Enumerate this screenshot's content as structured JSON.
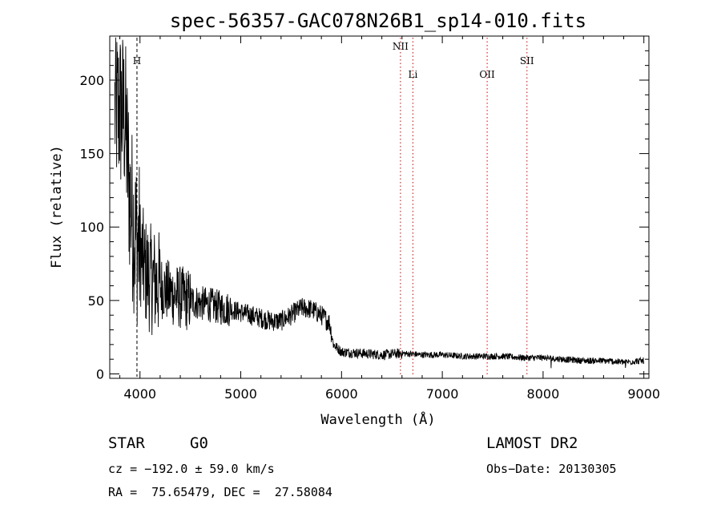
{
  "chart_data": {
    "type": "line",
    "title": "spec-56357-GAC078N26B1_sp14-010.fits",
    "xlabel": "Wavelength (Å)",
    "ylabel": "Flux (relative)",
    "xlim": [
      3700,
      9050
    ],
    "ylim": [
      -3,
      230
    ],
    "xticks": [
      4000,
      5000,
      6000,
      7000,
      8000,
      9000
    ],
    "yticks": [
      0,
      50,
      100,
      150,
      200
    ],
    "grid": false,
    "series_color": "#000000",
    "line_marker_color": "#d00000",
    "spectrum_envelope": {
      "x": [
        3800,
        3850,
        3900,
        3950,
        4000,
        4050,
        4100,
        4200,
        4300,
        4400,
        4500,
        4600,
        4700,
        4800,
        4900,
        5000,
        5100,
        5200,
        5300,
        5400,
        5500,
        5600,
        5700,
        5800,
        5880,
        5920,
        6000,
        6200,
        6400,
        6600,
        6800,
        7000,
        7200,
        7400,
        7600,
        7800,
        8000,
        8200,
        8400,
        8600,
        8800,
        9000
      ],
      "y": [
        180,
        175,
        120,
        95,
        85,
        70,
        65,
        60,
        55,
        52,
        50,
        48,
        47,
        45,
        44,
        42,
        40,
        38,
        36,
        36,
        40,
        45,
        44,
        40,
        35,
        20,
        15,
        14,
        13,
        14,
        13,
        13,
        12,
        12,
        12,
        11,
        11,
        10,
        9,
        9,
        8,
        9
      ]
    },
    "annotations": [
      {
        "label": "H",
        "x": 3970,
        "style": "dashed-black"
      },
      {
        "label": "NII",
        "x": 6585,
        "style": "dotted-red"
      },
      {
        "label": "Li",
        "x": 6708,
        "style": "dotted-red"
      },
      {
        "label": "OII",
        "x": 7445,
        "style": "dotted-red"
      },
      {
        "label": "SII",
        "x": 7840,
        "style": "dotted-red"
      }
    ]
  },
  "info": {
    "class_label": "STAR",
    "subclass_label": "G0",
    "survey_label": "LAMOST DR2",
    "velocity_text": "cz = −192.0 ± 59.0 km/s",
    "obsdate_text": "Obs−Date: 20130305",
    "coords_text": "RA =  75.65479, DEC =  27.58084"
  }
}
